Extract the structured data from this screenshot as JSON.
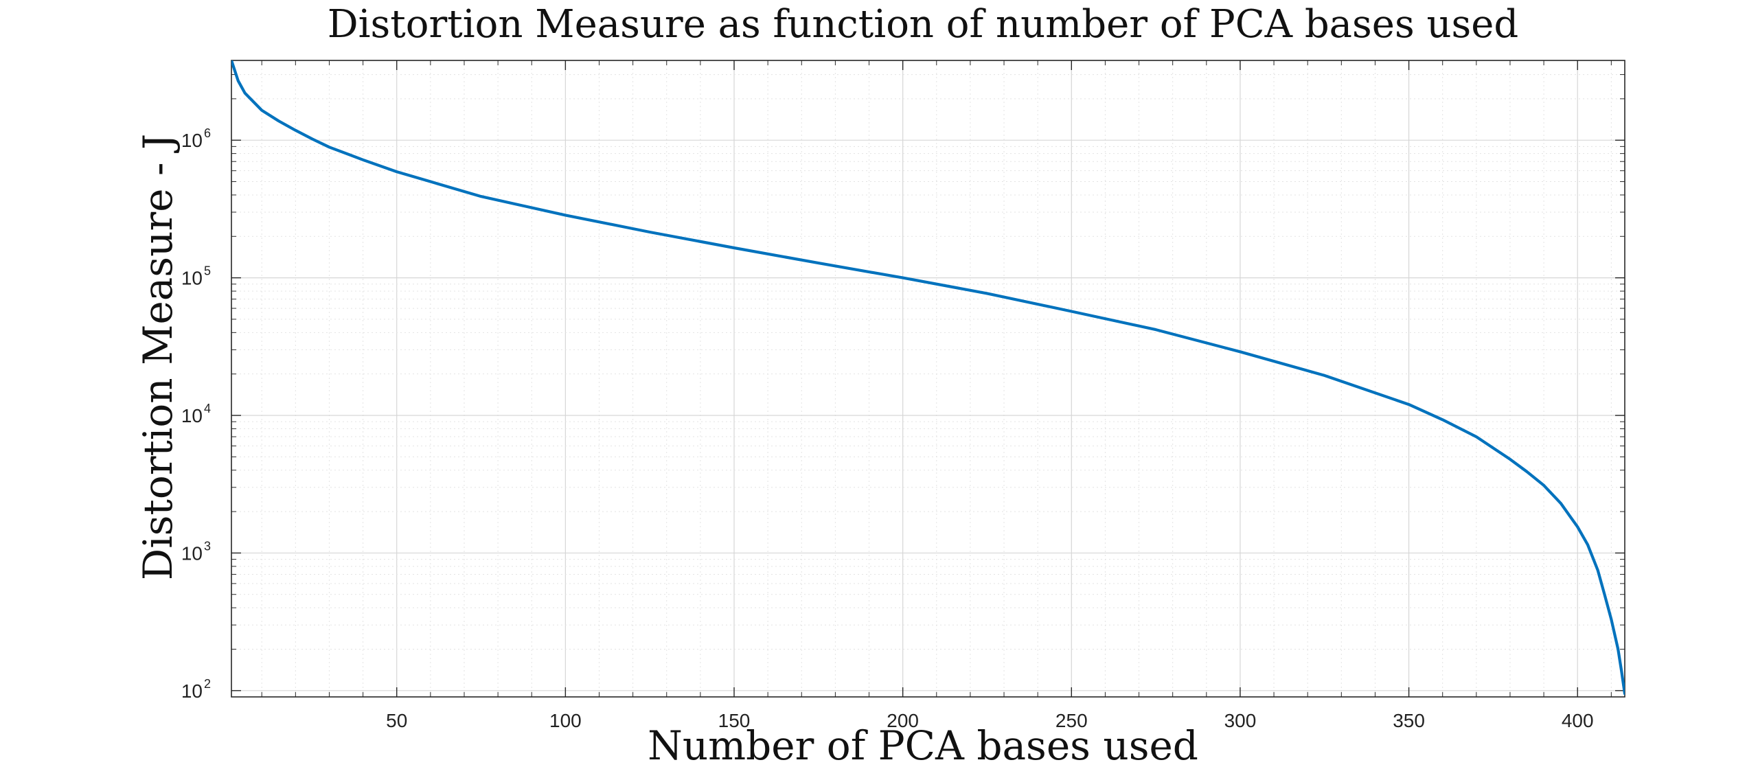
{
  "chart_data": {
    "type": "line",
    "title": "Distortion Measure as function of number of PCA bases used",
    "xlabel": "Number of PCA bases used",
    "ylabel": "Distortion Measure - J",
    "xlim": [
      1,
      414
    ],
    "ylim": [
      90,
      3800000
    ],
    "yscale": "log",
    "grid": true,
    "minor_grid": true,
    "x_ticks": [
      50,
      100,
      150,
      200,
      250,
      300,
      350,
      400
    ],
    "x_tick_labels": [
      "50",
      "100",
      "150",
      "200",
      "250",
      "300",
      "350",
      "400"
    ],
    "y_ticks": [
      {
        "value": 100,
        "base": "10",
        "exp": "2"
      },
      {
        "value": 1000,
        "base": "10",
        "exp": "3"
      },
      {
        "value": 10000,
        "base": "10",
        "exp": "4"
      },
      {
        "value": 100000,
        "base": "10",
        "exp": "5"
      },
      {
        "value": 1000000,
        "base": "10",
        "exp": "6"
      }
    ],
    "series": [
      {
        "color": "#0072BD",
        "x": [
          1,
          3,
          5,
          10,
          15,
          20,
          25,
          30,
          40,
          50,
          60,
          75,
          100,
          125,
          150,
          175,
          200,
          225,
          250,
          275,
          300,
          325,
          350,
          360,
          370,
          380,
          385,
          390,
          395,
          400,
          403,
          406,
          408,
          410,
          412,
          413,
          414
        ],
        "y": [
          3800000,
          2700000,
          2200000,
          1650000,
          1380000,
          1180000,
          1020000,
          890000,
          720000,
          590000,
          500000,
          390000,
          285000,
          215000,
          165000,
          128000,
          100000,
          77000,
          57000,
          42000,
          29000,
          19500,
          12000,
          9300,
          7000,
          4800,
          3900,
          3100,
          2300,
          1550,
          1150,
          750,
          500,
          330,
          200,
          140,
          95
        ]
      }
    ]
  }
}
